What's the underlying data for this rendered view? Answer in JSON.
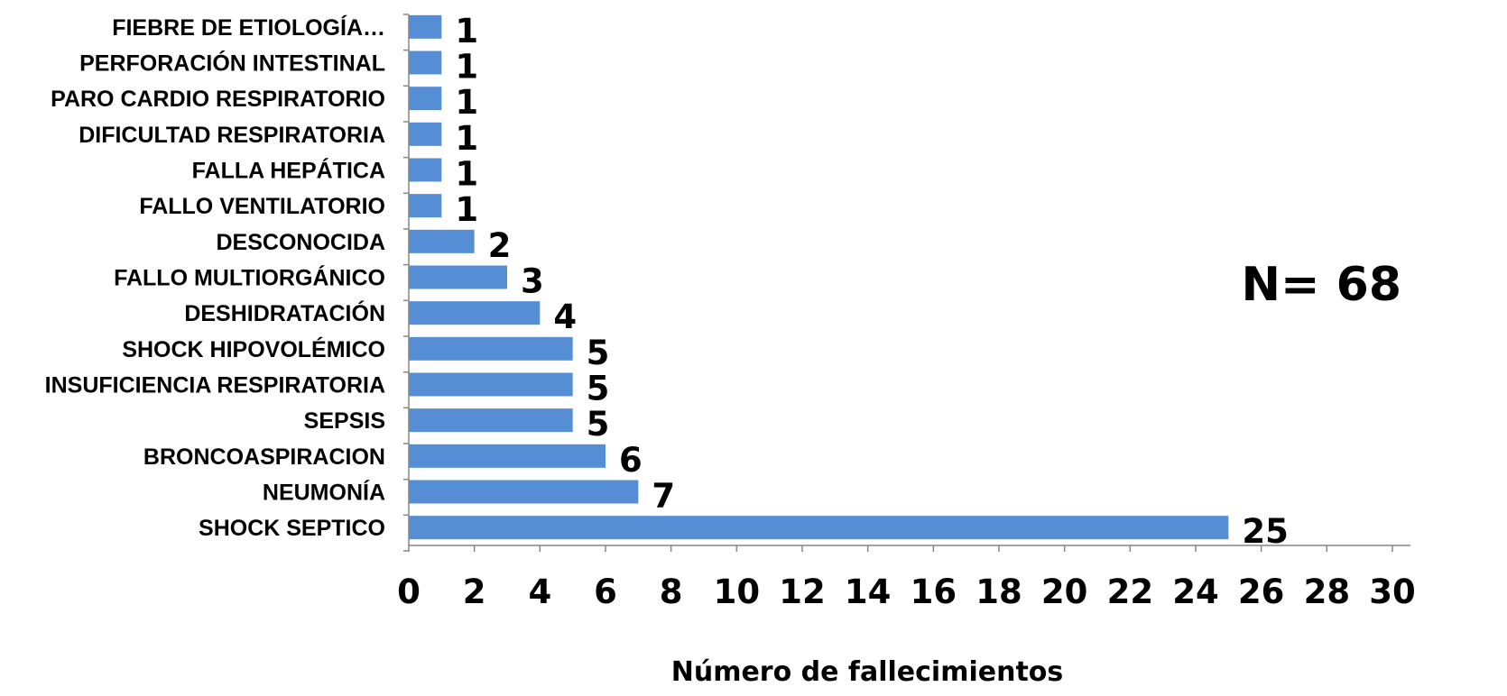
{
  "chart_data": {
    "type": "bar",
    "orientation": "horizontal",
    "categories": [
      "FIEBRE DE ETIOLOGÍA…",
      "PERFORACIÓN INTESTINAL",
      "PARO CARDIO RESPIRATORIO",
      "DIFICULTAD RESPIRATORIA",
      "FALLA HEPÁTICA",
      "FALLO VENTILATORIO",
      "DESCONOCIDA",
      "FALLO MULTIORGÁNICO",
      "DESHIDRATACIÓN",
      "SHOCK HIPOVOLÉMICO",
      "INSUFICIENCIA RESPIRATORIA",
      "SEPSIS",
      "BRONCOASPIRACION",
      "NEUMONÍA",
      "SHOCK SEPTICO"
    ],
    "values": [
      1,
      1,
      1,
      1,
      1,
      1,
      2,
      3,
      4,
      5,
      5,
      5,
      6,
      7,
      25
    ],
    "xlabel": "Número de fallecimientos",
    "ylabel": "",
    "xlim": [
      0,
      30
    ],
    "xticks": [
      0,
      2,
      4,
      6,
      8,
      10,
      12,
      14,
      16,
      18,
      20,
      22,
      24,
      26,
      28,
      30
    ],
    "bar_color": "#558ED5",
    "grid": false,
    "annotation": "N= 68"
  }
}
